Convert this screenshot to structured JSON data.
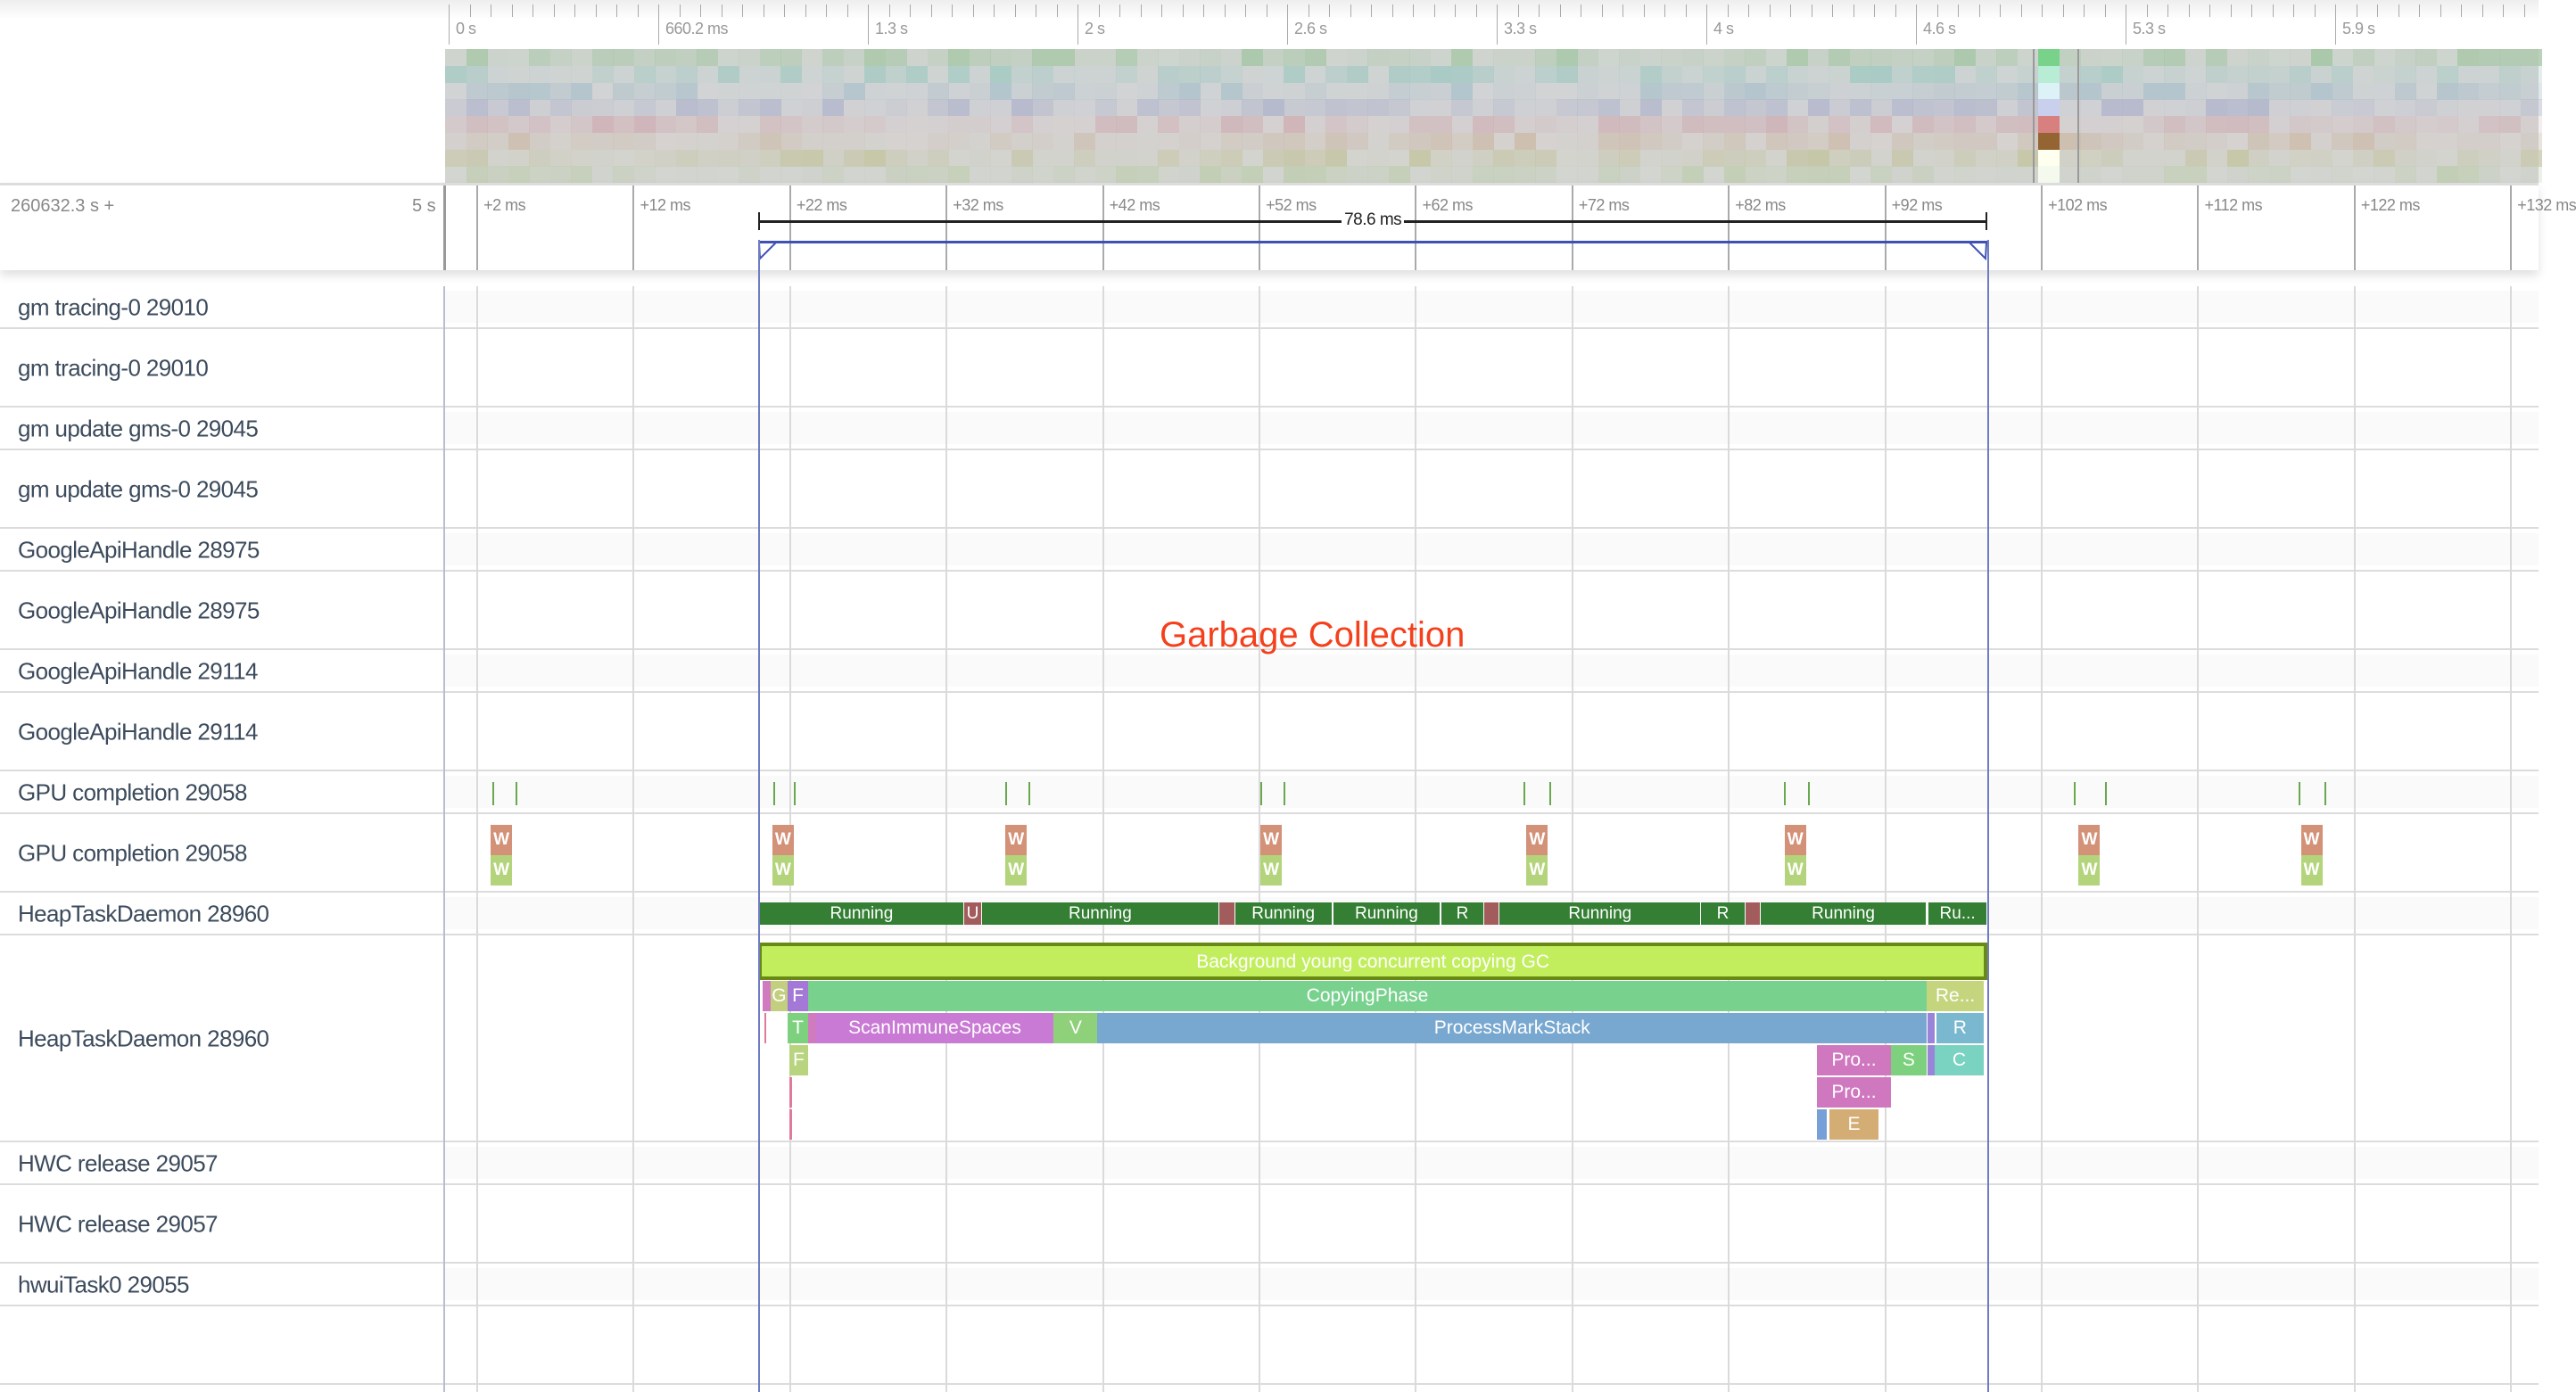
{
  "overview": {
    "ruler_labels": [
      "0 s",
      "660.2 ms",
      "1.3 s",
      "2 s",
      "2.6 s",
      "3.3 s",
      "4 s",
      "4.6 s",
      "5.3 s",
      "5.9 s"
    ],
    "row_tints": [
      "#a9c8a9",
      "#a9cac4",
      "#b2c4cc",
      "#b4b8cc",
      "#cfb4b8",
      "#cdbfb0",
      "#c6c6a8",
      "#c2ceb4"
    ],
    "window_colors": [
      "#78d28a",
      "#b8ecd4",
      "#dcf2f6",
      "#c8d0ee",
      "#d88080",
      "#946433",
      "#fffff0",
      "#f4fbee"
    ],
    "visible_window_s": [
      4.99,
      5.13
    ]
  },
  "timeline": {
    "base_label": "260632.3 s +",
    "span_label": "5 s",
    "ticks": [
      {
        "ms": 2,
        "label": "+2 ms"
      },
      {
        "ms": 12,
        "label": "+12 ms"
      },
      {
        "ms": 22,
        "label": "+22 ms"
      },
      {
        "ms": 32,
        "label": "+32 ms"
      },
      {
        "ms": 42,
        "label": "+42 ms"
      },
      {
        "ms": 52,
        "label": "+52 ms"
      },
      {
        "ms": 62,
        "label": "+62 ms"
      },
      {
        "ms": 72,
        "label": "+72 ms"
      },
      {
        "ms": 82,
        "label": "+82 ms"
      },
      {
        "ms": 92,
        "label": "+92 ms"
      },
      {
        "ms": 102,
        "label": "+102 ms"
      },
      {
        "ms": 112,
        "label": "+112 ms"
      },
      {
        "ms": 122,
        "label": "+122 ms"
      },
      {
        "ms": 132,
        "label": "+132 ms"
      }
    ]
  },
  "selection": {
    "start_ms": 20.0,
    "end_ms": 98.6,
    "label": "78.6 ms",
    "color": "#3f51b5"
  },
  "annotation": {
    "text": "Garbage Collection",
    "color": "#f4401c"
  },
  "tracks": [
    {
      "label": "gm tracing-0 29010",
      "kind": "summary"
    },
    {
      "label": "gm tracing-0 29010",
      "kind": "expanded"
    },
    {
      "label": "gm update gms-0 29045",
      "kind": "summary"
    },
    {
      "label": "gm update gms-0 29045",
      "kind": "expanded"
    },
    {
      "label": "GoogleApiHandle 28975",
      "kind": "summary"
    },
    {
      "label": "GoogleApiHandle 28975",
      "kind": "expanded"
    },
    {
      "label": "GoogleApiHandle 29114",
      "kind": "summary"
    },
    {
      "label": "GoogleApiHandle 29114",
      "kind": "expanded"
    },
    {
      "label": "GPU completion 29058",
      "kind": "summary"
    },
    {
      "label": "GPU completion 29058",
      "kind": "expanded"
    },
    {
      "label": "HeapTaskDaemon 28960",
      "kind": "summary"
    },
    {
      "label": "HeapTaskDaemon 28960",
      "kind": "heap"
    },
    {
      "label": "HWC release 29057",
      "kind": "summary"
    },
    {
      "label": "HWC release 29057",
      "kind": "expanded"
    },
    {
      "label": "hwuiTask0 29055",
      "kind": "summary"
    },
    {
      "label": "",
      "kind": "expanded"
    }
  ],
  "gpu_ticks_ms": [
    3.0,
    4.5,
    21.0,
    22.3,
    35.8,
    37.3,
    52.1,
    53.6,
    68.9,
    70.6,
    85.6,
    87.1,
    104.1,
    106.1,
    118.5,
    120.1
  ],
  "gpu_waits": {
    "label": "W",
    "times_ms": [
      3.6,
      21.6,
      36.5,
      52.8,
      69.8,
      86.3,
      105.1,
      119.3
    ],
    "colors": [
      "#d39178",
      "#b4d47b"
    ]
  },
  "thread_states": [
    {
      "start": 20.1,
      "end": 33.2,
      "label": "Running",
      "color": "#347f34"
    },
    {
      "start": 33.2,
      "end": 34.3,
      "label": "U",
      "color": "#a35c5c"
    },
    {
      "start": 34.3,
      "end": 49.5,
      "label": "Running",
      "color": "#347f34"
    },
    {
      "start": 49.5,
      "end": 50.5,
      "label": "",
      "color": "#a35c5c"
    },
    {
      "start": 50.5,
      "end": 56.7,
      "label": "Running",
      "color": "#347f34"
    },
    {
      "start": 56.8,
      "end": 63.6,
      "label": "Running",
      "color": "#347f34"
    },
    {
      "start": 63.7,
      "end": 66.4,
      "label": "R",
      "color": "#347f34"
    },
    {
      "start": 66.4,
      "end": 67.4,
      "label": "",
      "color": "#a35c5c"
    },
    {
      "start": 67.4,
      "end": 80.3,
      "label": "Running",
      "color": "#347f34"
    },
    {
      "start": 80.3,
      "end": 83.1,
      "label": "R",
      "color": "#347f34"
    },
    {
      "start": 83.1,
      "end": 84.1,
      "label": "",
      "color": "#a35c5c"
    },
    {
      "start": 84.1,
      "end": 94.7,
      "label": "Running",
      "color": "#347f34"
    },
    {
      "start": 94.8,
      "end": 98.6,
      "label": "Ru...",
      "color": "#347f34"
    }
  ],
  "slices": [
    {
      "depth": 0,
      "start": 20.0,
      "end": 98.6,
      "label": "Background young concurrent copying GC",
      "color": "#c2ee5e",
      "border": "#688a14"
    },
    {
      "depth": 1,
      "start": 20.3,
      "end": 20.8,
      "label": "",
      "color": "#d07ac0"
    },
    {
      "depth": 1,
      "start": 20.8,
      "end": 21.9,
      "label": "G",
      "color": "#c2cf7e"
    },
    {
      "depth": 1,
      "start": 21.9,
      "end": 23.2,
      "label": "F",
      "color": "#a478d6"
    },
    {
      "depth": 1,
      "start": 23.2,
      "end": 94.7,
      "label": "CopyingPhase",
      "color": "#79d18e"
    },
    {
      "depth": 1,
      "start": 94.7,
      "end": 98.35,
      "label": "Re...",
      "color": "#c4d57e"
    },
    {
      "depth": 2,
      "start": 20.4,
      "end": 20.55,
      "label": "",
      "color": "#e07a9a"
    },
    {
      "depth": 2,
      "start": 21.9,
      "end": 23.2,
      "label": "T",
      "color": "#7dd17e"
    },
    {
      "depth": 2,
      "start": 23.2,
      "end": 23.7,
      "label": "",
      "color": "#d07ac0"
    },
    {
      "depth": 2,
      "start": 23.7,
      "end": 38.9,
      "label": "ScanImmuneSpaces",
      "color": "#c97ad4"
    },
    {
      "depth": 2,
      "start": 38.9,
      "end": 41.7,
      "label": "V",
      "color": "#8fd17a"
    },
    {
      "depth": 2,
      "start": 41.7,
      "end": 94.7,
      "label": "ProcessMarkStack",
      "color": "#78a8d0"
    },
    {
      "depth": 2,
      "start": 94.76,
      "end": 95.2,
      "label": "",
      "color": "#9a84d8"
    },
    {
      "depth": 2,
      "start": 95.3,
      "end": 98.35,
      "label": "R",
      "color": "#7ab8d0"
    },
    {
      "depth": 3,
      "start": 22.0,
      "end": 23.2,
      "label": "F",
      "color": "#b8d47e"
    },
    {
      "depth": 3,
      "start": 87.7,
      "end": 92.4,
      "label": "Pro...",
      "color": "#d078bf"
    },
    {
      "depth": 3,
      "start": 92.4,
      "end": 94.7,
      "label": "S",
      "color": "#7dd17e"
    },
    {
      "depth": 3,
      "start": 94.76,
      "end": 95.2,
      "label": "",
      "color": "#9a84d8"
    },
    {
      "depth": 3,
      "start": 95.2,
      "end": 98.35,
      "label": "C",
      "color": "#7ad2c0"
    },
    {
      "depth": 4,
      "start": 22.0,
      "end": 22.15,
      "label": "",
      "color": "#e07a9a"
    },
    {
      "depth": 4,
      "start": 87.7,
      "end": 92.4,
      "label": "Pro...",
      "color": "#d078bf"
    },
    {
      "depth": 5,
      "start": 22.0,
      "end": 22.2,
      "label": "",
      "color": "#e07a9a"
    },
    {
      "depth": 5,
      "start": 87.7,
      "end": 88.3,
      "label": "",
      "color": "#78a0d8"
    },
    {
      "depth": 5,
      "start": 88.5,
      "end": 91.6,
      "label": "E",
      "color": "#d4ad74"
    }
  ]
}
